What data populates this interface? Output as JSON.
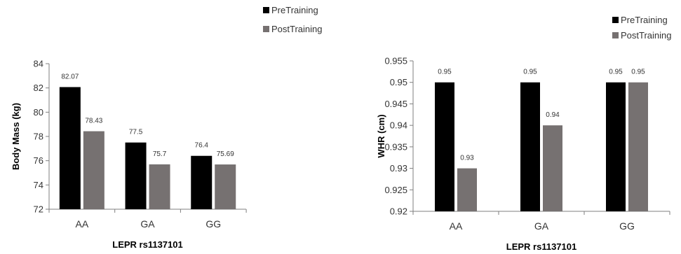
{
  "colors": {
    "pre": "#000000",
    "post": "#767171",
    "axis": "#7f7f7f"
  },
  "chart_data": [
    {
      "type": "bar",
      "categories": [
        "AA",
        "GA",
        "GG"
      ],
      "series": [
        {
          "name": "PreTraining",
          "values": [
            82.07,
            77.5,
            76.4
          ],
          "labels": [
            "82.07",
            "77.5",
            "76.4"
          ]
        },
        {
          "name": "PostTraining",
          "values": [
            78.43,
            75.7,
            75.69
          ],
          "labels": [
            "78.43",
            "75.7",
            "75.69"
          ]
        }
      ],
      "xlabel": "LEPR rs1137101",
      "ylabel": "Body Mass (kg)",
      "ylim": [
        72,
        84
      ],
      "yticks": [
        "72",
        "74",
        "76",
        "78",
        "80",
        "82",
        "84"
      ],
      "grid": false,
      "legend": "top-right"
    },
    {
      "type": "bar",
      "categories": [
        "AA",
        "GA",
        "GG"
      ],
      "series": [
        {
          "name": "PreTraining",
          "values": [
            0.95,
            0.95,
            0.95
          ],
          "labels": [
            "0.95",
            "0.95",
            "0.95"
          ]
        },
        {
          "name": "PostTraining",
          "values": [
            0.93,
            0.94,
            0.95
          ],
          "labels": [
            "0.93",
            "0.94",
            "0.95"
          ]
        }
      ],
      "xlabel": "LEPR rs1137101",
      "ylabel": "WHR (cm)",
      "ylim": [
        0.92,
        0.955
      ],
      "yticks": [
        "0.92",
        "0.925",
        "0.93",
        "0.935",
        "0.94",
        "0.945",
        "0.95",
        "0.955"
      ],
      "grid": false,
      "legend": "top-right"
    }
  ]
}
